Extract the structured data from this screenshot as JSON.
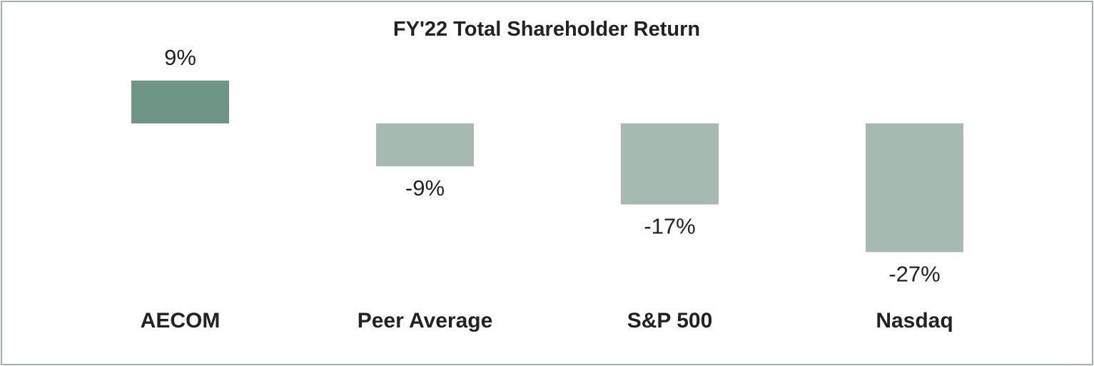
{
  "chart_data": {
    "type": "bar",
    "title": "FY'22 Total Shareholder Return",
    "xlabel": "",
    "ylabel": "",
    "categories": [
      "AECOM",
      "Peer Average",
      "S&P 500",
      "Nasdaq"
    ],
    "values": [
      9,
      -9,
      -17,
      -27
    ],
    "value_labels": [
      "9%",
      "-9%",
      "-17%",
      "-27%"
    ],
    "unit": "%",
    "ylim": [
      -27,
      9
    ],
    "grid": false,
    "legend": "none",
    "colors": {
      "highlight": "#6e9585",
      "default": "#a7bab2",
      "frame": "#9fb1ab",
      "text": "#222222"
    }
  }
}
